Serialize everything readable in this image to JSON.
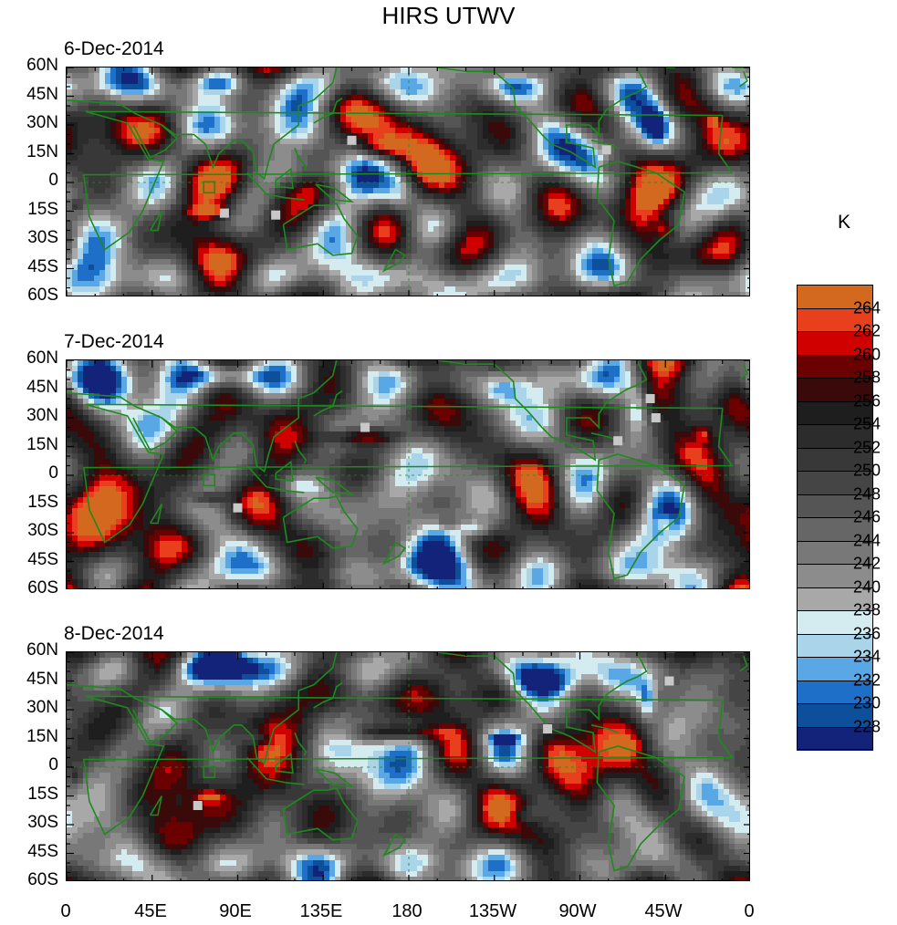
{
  "title": "HIRS UTWV",
  "panels": [
    {
      "date": "6-Dec-2014"
    },
    {
      "date": "7-Dec-2014"
    },
    {
      "date": "8-Dec-2014"
    }
  ],
  "lat_labels": [
    "60N",
    "45N",
    "30N",
    "15N",
    "0",
    "15S",
    "30S",
    "45S",
    "60S"
  ],
  "lon_labels": [
    "0",
    "45E",
    "90E",
    "135E",
    "180",
    "135W",
    "90W",
    "45W",
    "0"
  ],
  "colorbar": {
    "unit": "K",
    "labels": [
      "264",
      "262",
      "260",
      "258",
      "256",
      "254",
      "252",
      "250",
      "248",
      "246",
      "244",
      "242",
      "240",
      "238",
      "236",
      "234",
      "232",
      "230",
      "228"
    ],
    "colors": [
      "#d2691e",
      "#e8401c",
      "#d00000",
      "#6b0000",
      "#3a0a0a",
      "#1e1e1e",
      "#2c2c2c",
      "#383838",
      "#454545",
      "#555555",
      "#666666",
      "#787878",
      "#8c8c8c",
      "#a8a8a8",
      "#d4ecf0",
      "#a9d4ea",
      "#5aa7e6",
      "#1e6fc8",
      "#0e4f9c",
      "#14237a"
    ]
  },
  "colors": {
    "coastline": "#1e8a1e",
    "background": "#4a4a4a"
  }
}
